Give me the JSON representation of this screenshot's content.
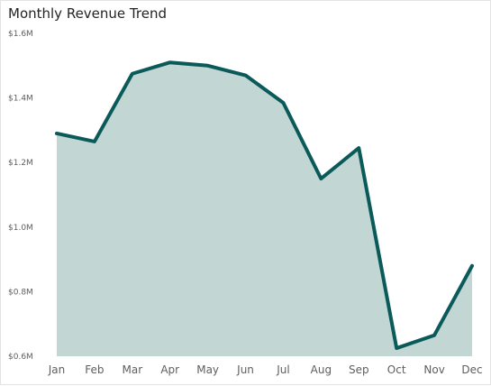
{
  "chart_data": {
    "type": "area",
    "title": "Monthly Revenue Trend",
    "categories": [
      "Jan",
      "Feb",
      "Mar",
      "Apr",
      "May",
      "Jun",
      "Jul",
      "Aug",
      "Sep",
      "Oct",
      "Nov",
      "Dec"
    ],
    "values": [
      1.29,
      1.265,
      1.475,
      1.51,
      1.5,
      1.47,
      1.385,
      1.15,
      1.245,
      0.625,
      0.665,
      0.88
    ],
    "ylim": [
      0.6,
      1.6
    ],
    "yticks": [
      {
        "value": 1.6,
        "label": "$1.6M"
      },
      {
        "value": 1.4,
        "label": "$1.4M"
      },
      {
        "value": 1.2,
        "label": "$1.2M"
      },
      {
        "value": 1.0,
        "label": "$1.0M"
      },
      {
        "value": 0.8,
        "label": "$0.8M"
      },
      {
        "value": 0.6,
        "label": "$0.6M"
      }
    ],
    "grid": false,
    "colors": {
      "line": "#0b5a5a",
      "fill": "#c2d7d4"
    }
  }
}
